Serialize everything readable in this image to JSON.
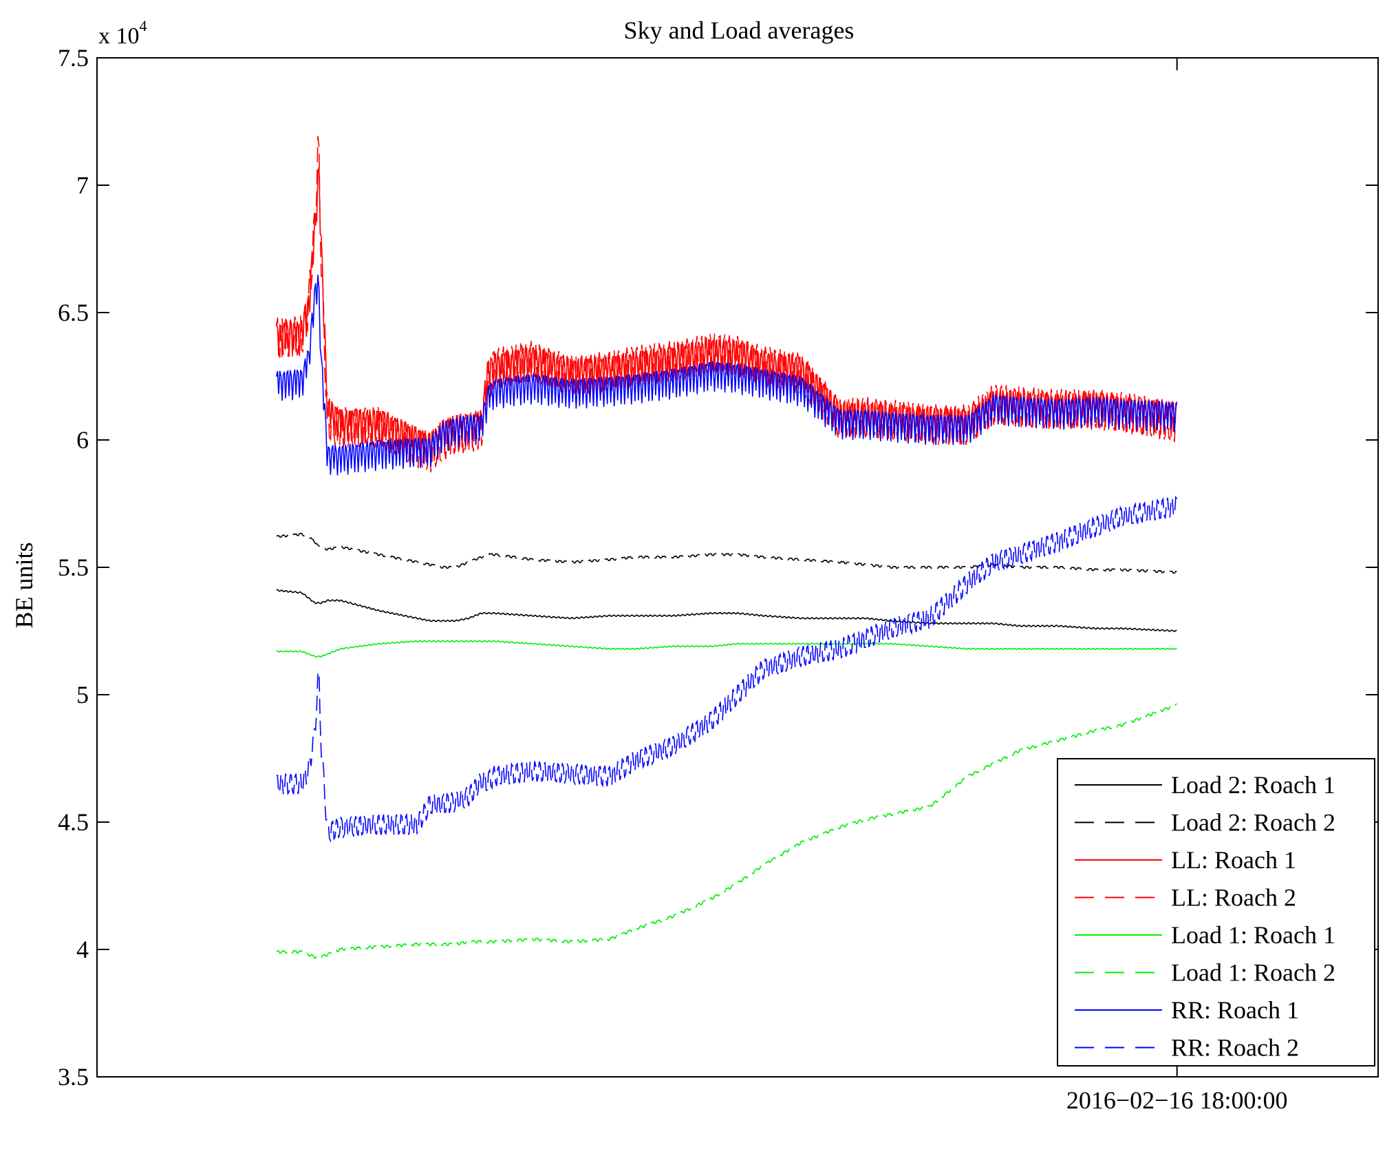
{
  "chart_data": {
    "type": "line",
    "title": "Sky and Load averages",
    "xlabel": "",
    "ylabel": "BE units",
    "y_exponent_label": "x 10",
    "y_exponent_power": "4",
    "ylim": [
      3.5,
      7.5
    ],
    "yticks": [
      3.5,
      4,
      4.5,
      5,
      5.5,
      6,
      6.5,
      7,
      7.5
    ],
    "ytick_labels": [
      "3.5",
      "4",
      "4.5",
      "5",
      "5.5",
      "6",
      "6.5",
      "7",
      "7.5"
    ],
    "xlim": [
      0,
      1
    ],
    "xticks": [
      0.843
    ],
    "xtick_labels": [
      "2016−02−16 18:00:00"
    ],
    "legend_position": "bottom-right",
    "x": [
      0.14,
      0.16,
      0.165,
      0.17,
      0.173,
      0.175,
      0.18,
      0.19,
      0.22,
      0.25,
      0.26,
      0.27,
      0.28,
      0.29,
      0.3,
      0.305,
      0.31,
      0.34,
      0.37,
      0.4,
      0.42,
      0.45,
      0.48,
      0.5,
      0.52,
      0.55,
      0.58,
      0.6,
      0.62,
      0.65,
      0.68,
      0.7,
      0.72,
      0.75,
      0.78,
      0.8,
      0.843
    ],
    "series": [
      {
        "name": "Load 2: Roach 1",
        "color": "#000000",
        "dash": "solid",
        "jitter": 0.005,
        "period": 4,
        "values": [
          5.41,
          5.4,
          5.38,
          5.36,
          5.36,
          5.36,
          5.37,
          5.37,
          5.33,
          5.3,
          5.29,
          5.29,
          5.29,
          5.3,
          5.32,
          5.32,
          5.32,
          5.31,
          5.3,
          5.31,
          5.31,
          5.31,
          5.32,
          5.32,
          5.31,
          5.3,
          5.3,
          5.3,
          5.29,
          5.28,
          5.28,
          5.28,
          5.27,
          5.27,
          5.26,
          5.26,
          5.25
        ]
      },
      {
        "name": "Load 2: Roach 2",
        "color": "#000000",
        "dash": "long",
        "jitter": 0.008,
        "period": 5,
        "values": [
          5.62,
          5.63,
          5.62,
          5.6,
          5.58,
          5.58,
          5.57,
          5.58,
          5.55,
          5.52,
          5.51,
          5.5,
          5.5,
          5.52,
          5.54,
          5.55,
          5.55,
          5.53,
          5.52,
          5.53,
          5.54,
          5.54,
          5.55,
          5.55,
          5.54,
          5.53,
          5.52,
          5.51,
          5.5,
          5.5,
          5.5,
          5.51,
          5.5,
          5.5,
          5.49,
          5.49,
          5.48
        ]
      },
      {
        "name": "LL: Roach 1",
        "color": "#ff0000",
        "dash": "solid",
        "jitter": 0.14,
        "period": 3,
        "values": [
          6.39,
          6.4,
          6.5,
          6.8,
          7.05,
          6.75,
          6.1,
          6.05,
          6.05,
          5.98,
          5.96,
          6.01,
          6.03,
          6.03,
          6.05,
          6.25,
          6.27,
          6.3,
          6.25,
          6.26,
          6.28,
          6.3,
          6.33,
          6.32,
          6.28,
          6.26,
          6.08,
          6.08,
          6.07,
          6.06,
          6.05,
          6.13,
          6.12,
          6.11,
          6.12,
          6.1,
          6.08
        ]
      },
      {
        "name": "LL: Roach 2",
        "color": "#ff0000",
        "dash": "long",
        "jitter": 0.16,
        "period": 4,
        "values": [
          6.4,
          6.41,
          6.52,
          6.85,
          7.18,
          6.7,
          6.07,
          6.05,
          6.05,
          5.97,
          5.95,
          6.0,
          6.02,
          6.03,
          6.04,
          6.22,
          6.28,
          6.31,
          6.25,
          6.27,
          6.29,
          6.31,
          6.34,
          6.33,
          6.29,
          6.26,
          6.08,
          6.09,
          6.08,
          6.06,
          6.06,
          6.14,
          6.13,
          6.12,
          6.12,
          6.11,
          6.07
        ]
      },
      {
        "name": "Load 1: Roach 1",
        "color": "#00ee00",
        "dash": "solid",
        "jitter": 0.004,
        "period": 4,
        "values": [
          5.17,
          5.17,
          5.16,
          5.15,
          5.15,
          5.15,
          5.16,
          5.18,
          5.2,
          5.21,
          5.21,
          5.21,
          5.21,
          5.21,
          5.21,
          5.21,
          5.21,
          5.2,
          5.19,
          5.18,
          5.18,
          5.19,
          5.19,
          5.2,
          5.2,
          5.2,
          5.2,
          5.2,
          5.2,
          5.19,
          5.18,
          5.18,
          5.18,
          5.18,
          5.18,
          5.18,
          5.18
        ]
      },
      {
        "name": "Load 1: Roach 2",
        "color": "#00ee00",
        "dash": "long",
        "jitter": 0.01,
        "period": 5,
        "values": [
          3.99,
          3.99,
          3.98,
          3.97,
          3.97,
          3.97,
          3.98,
          4.0,
          4.01,
          4.02,
          4.02,
          4.02,
          4.02,
          4.03,
          4.03,
          4.03,
          4.03,
          4.04,
          4.03,
          4.04,
          4.08,
          4.13,
          4.2,
          4.26,
          4.33,
          4.42,
          4.48,
          4.51,
          4.53,
          4.56,
          4.68,
          4.73,
          4.78,
          4.82,
          4.86,
          4.88,
          4.96
        ]
      },
      {
        "name": "RR: Roach 1",
        "color": "#0000ff",
        "dash": "solid",
        "jitter": 0.12,
        "period": 3,
        "values": [
          6.21,
          6.22,
          6.3,
          6.55,
          6.6,
          6.3,
          5.92,
          5.92,
          5.94,
          5.95,
          5.95,
          6.01,
          6.03,
          6.04,
          6.04,
          6.15,
          6.18,
          6.2,
          6.18,
          6.19,
          6.2,
          6.22,
          6.25,
          6.24,
          6.22,
          6.19,
          6.06,
          6.06,
          6.05,
          6.04,
          6.04,
          6.12,
          6.11,
          6.1,
          6.11,
          6.1,
          6.09
        ]
      },
      {
        "name": "RR: Roach 2",
        "color": "#0000ff",
        "dash": "long",
        "jitter": 0.08,
        "period": 4,
        "values": [
          4.65,
          4.65,
          4.7,
          4.85,
          5.1,
          4.8,
          4.46,
          4.48,
          4.49,
          4.49,
          4.57,
          4.57,
          4.58,
          4.6,
          4.66,
          4.66,
          4.68,
          4.7,
          4.69,
          4.68,
          4.74,
          4.8,
          4.9,
          5.0,
          5.1,
          5.15,
          5.18,
          5.22,
          5.26,
          5.3,
          5.44,
          5.52,
          5.55,
          5.6,
          5.66,
          5.7,
          5.74
        ]
      }
    ]
  }
}
